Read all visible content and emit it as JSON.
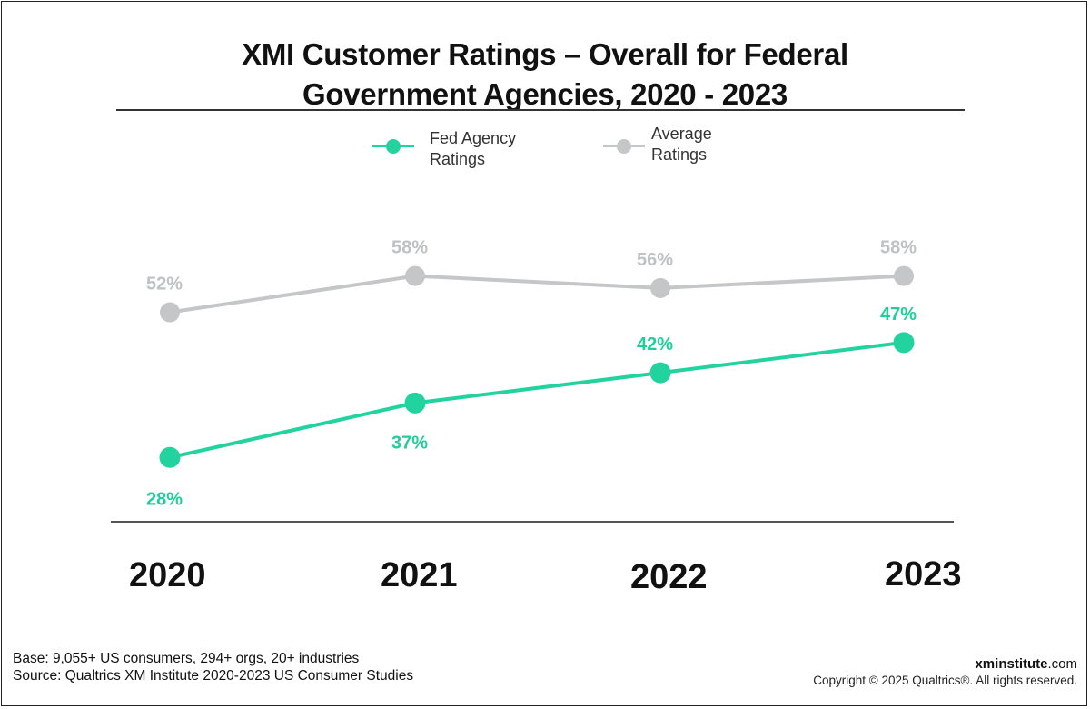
{
  "title": {
    "line1": "XMI Customer Ratings – Overall for Federal",
    "line2": "Government Agencies, 2020 - 2023"
  },
  "legend": {
    "fed": {
      "line1": "Fed Agency",
      "line2": "Ratings"
    },
    "avg": {
      "line1": "Average",
      "line2": "Ratings"
    }
  },
  "colors": {
    "fed": "#22d3a0",
    "avg": "#c4c6c8",
    "fed_label": "#1ecf9c",
    "avg_label": "#bfc1c3"
  },
  "chart_data": {
    "type": "line",
    "title": "XMI Customer Ratings – Overall for Federal Government Agencies, 2020 - 2023",
    "categories": [
      "2020",
      "2021",
      "2022",
      "2023"
    ],
    "series": [
      {
        "name": "Fed Agency Ratings",
        "values": [
          28,
          37,
          42,
          47
        ],
        "labels": [
          "28%",
          "37%",
          "42%",
          "47%"
        ]
      },
      {
        "name": "Average Ratings",
        "values": [
          52,
          58,
          56,
          58
        ],
        "labels": [
          "52%",
          "58%",
          "56%",
          "58%"
        ]
      }
    ],
    "xlabel": "",
    "ylabel": "",
    "ylim": [
      0,
      100
    ],
    "legend_position": "top-center",
    "grid": false
  },
  "footer": {
    "base": "Base: 9,055+ US consumers, 294+ orgs, 20+ industries",
    "source": "Source: Qualtrics XM Institute 2020-2023 US Consumer Studies",
    "brand_bold": "xminstitute",
    "brand_suffix": ".com",
    "copyright": "Copyright © 2025 Qualtrics®. All rights reserved."
  }
}
